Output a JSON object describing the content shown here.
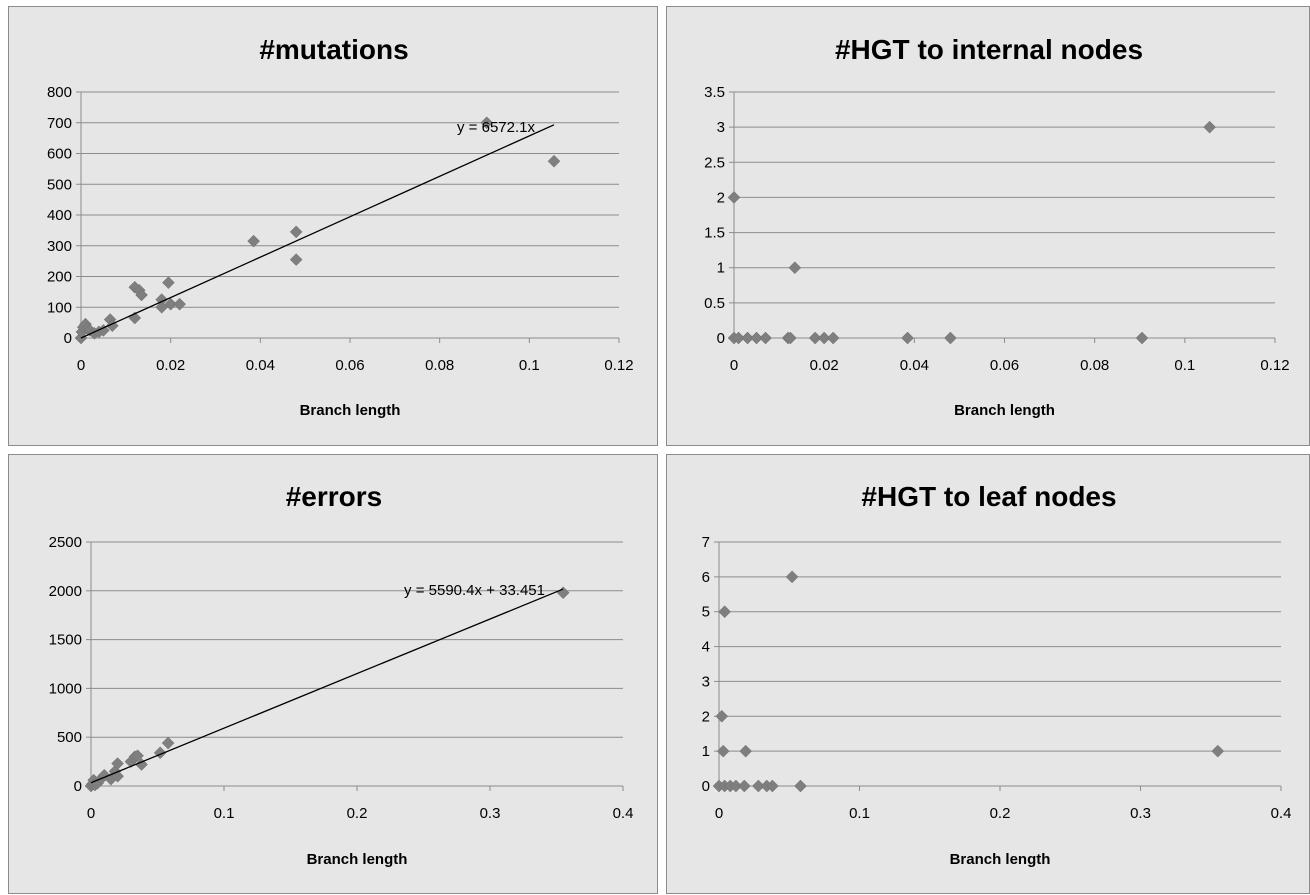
{
  "chart_data": [
    {
      "type": "scatter",
      "title": "#mutations",
      "xlabel": "Branch length",
      "ylabel": "",
      "xlim": [
        0,
        0.12
      ],
      "ylim": [
        0,
        800
      ],
      "xticks": [
        "0",
        "0.02",
        "0.04",
        "0.06",
        "0.08",
        "0.1",
        "0.12"
      ],
      "yticks": [
        "0",
        "100",
        "200",
        "300",
        "400",
        "500",
        "600",
        "700",
        "800"
      ],
      "grid": "horizontal",
      "marker_color": "#7f7f7f",
      "trendline": {
        "slope": 6572.1,
        "intercept": 0,
        "x_end": 0.1055,
        "label": "y = 6572.1x"
      },
      "points": [
        [
          0,
          0
        ],
        [
          0.0002,
          20
        ],
        [
          0.0005,
          35
        ],
        [
          0.001,
          45
        ],
        [
          0.0015,
          30
        ],
        [
          0.002,
          25
        ],
        [
          0.003,
          15
        ],
        [
          0.004,
          20
        ],
        [
          0.005,
          25
        ],
        [
          0.0065,
          60
        ],
        [
          0.007,
          40
        ],
        [
          0.012,
          65
        ],
        [
          0.012,
          165
        ],
        [
          0.013,
          155
        ],
        [
          0.0135,
          140
        ],
        [
          0.018,
          125
        ],
        [
          0.018,
          100
        ],
        [
          0.0195,
          180
        ],
        [
          0.02,
          110
        ],
        [
          0.022,
          110
        ],
        [
          0.0385,
          315
        ],
        [
          0.048,
          345
        ],
        [
          0.048,
          255
        ],
        [
          0.0905,
          700
        ],
        [
          0.1055,
          575
        ]
      ]
    },
    {
      "type": "scatter",
      "title": "#HGT to internal nodes",
      "xlabel": "Branch length",
      "ylabel": "",
      "xlim": [
        0,
        0.12
      ],
      "ylim": [
        0,
        3.5
      ],
      "xticks": [
        "0",
        "0.02",
        "0.04",
        "0.06",
        "0.08",
        "0.1",
        "0.12"
      ],
      "yticks": [
        "0",
        "0.5",
        "1",
        "1.5",
        "2",
        "2.5",
        "3",
        "3.5"
      ],
      "grid": "horizontal",
      "marker_color": "#7f7f7f",
      "points": [
        [
          0,
          2
        ],
        [
          0,
          0
        ],
        [
          0.001,
          0
        ],
        [
          0.003,
          0
        ],
        [
          0.003,
          0
        ],
        [
          0.005,
          0
        ],
        [
          0.007,
          0
        ],
        [
          0.012,
          0
        ],
        [
          0.0125,
          0
        ],
        [
          0.0135,
          1
        ],
        [
          0.018,
          0
        ],
        [
          0.02,
          0
        ],
        [
          0.022,
          0
        ],
        [
          0.0385,
          0
        ],
        [
          0.048,
          0
        ],
        [
          0.0905,
          0
        ],
        [
          0.1055,
          3
        ]
      ]
    },
    {
      "type": "scatter",
      "title": "#errors",
      "xlabel": "Branch length",
      "ylabel": "",
      "xlim": [
        0,
        0.4
      ],
      "ylim": [
        0,
        2500
      ],
      "xticks": [
        "0",
        "0.1",
        "0.2",
        "0.3",
        "0.4"
      ],
      "yticks": [
        "0",
        "500",
        "1000",
        "1500",
        "2000",
        "2500"
      ],
      "grid": "horizontal",
      "marker_color": "#7f7f7f",
      "trendline": {
        "slope": 5590.4,
        "intercept": 33.451,
        "x_end": 0.355,
        "label": "y = 5590.4x + 33.451"
      },
      "points": [
        [
          0,
          0
        ],
        [
          0.001,
          20
        ],
        [
          0.002,
          60
        ],
        [
          0.003,
          10
        ],
        [
          0.005,
          30
        ],
        [
          0.008,
          80
        ],
        [
          0.01,
          110
        ],
        [
          0.015,
          70
        ],
        [
          0.018,
          150
        ],
        [
          0.02,
          100
        ],
        [
          0.02,
          230
        ],
        [
          0.03,
          250
        ],
        [
          0.033,
          300
        ],
        [
          0.035,
          310
        ],
        [
          0.038,
          220
        ],
        [
          0.052,
          340
        ],
        [
          0.058,
          440
        ],
        [
          0.355,
          1980
        ]
      ]
    },
    {
      "type": "scatter",
      "title": "#HGT to leaf nodes",
      "xlabel": "Branch length",
      "ylabel": "",
      "xlim": [
        0,
        0.4
      ],
      "ylim": [
        0,
        7
      ],
      "xticks": [
        "0",
        "0.1",
        "0.2",
        "0.3",
        "0.4"
      ],
      "yticks": [
        "0",
        "1",
        "2",
        "3",
        "4",
        "5",
        "6",
        "7"
      ],
      "grid": "horizontal",
      "marker_color": "#7f7f7f",
      "points": [
        [
          0,
          0
        ],
        [
          0.002,
          2
        ],
        [
          0.003,
          1
        ],
        [
          0.004,
          5
        ],
        [
          0.004,
          0
        ],
        [
          0.008,
          0
        ],
        [
          0.012,
          0
        ],
        [
          0.018,
          0
        ],
        [
          0.019,
          1
        ],
        [
          0.028,
          0
        ],
        [
          0.034,
          0
        ],
        [
          0.038,
          0
        ],
        [
          0.052,
          6
        ],
        [
          0.058,
          0
        ],
        [
          0.355,
          1
        ]
      ]
    }
  ]
}
